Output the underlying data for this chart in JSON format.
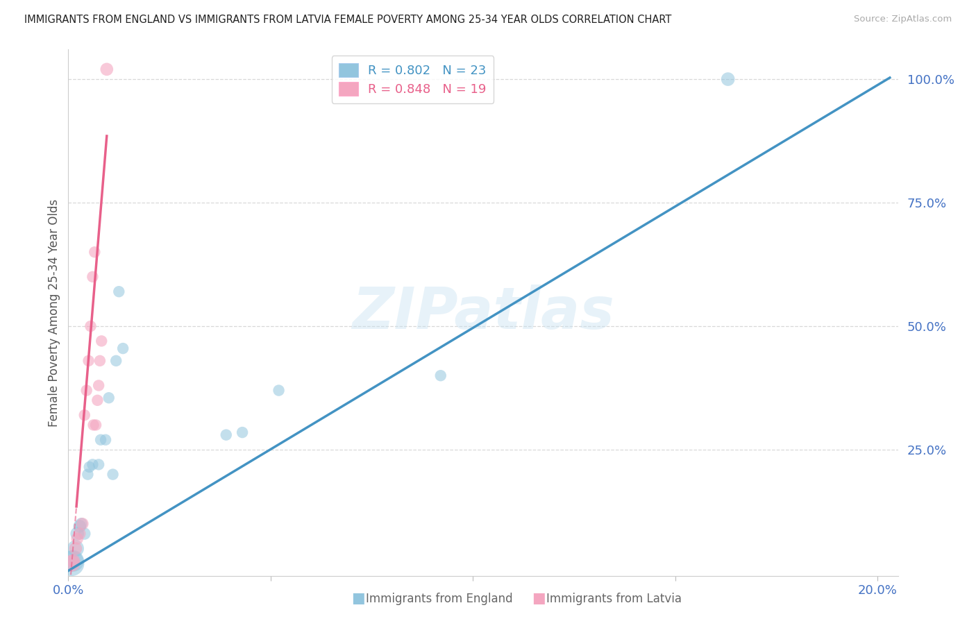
{
  "title": "IMMIGRANTS FROM ENGLAND VS IMMIGRANTS FROM LATVIA FEMALE POVERTY AMONG 25-34 YEAR OLDS CORRELATION CHART",
  "source": "Source: ZipAtlas.com",
  "ylabel": "Female Poverty Among 25-34 Year Olds",
  "watermark": "ZIPatlas",
  "legend_r_england": "R = 0.802",
  "legend_n_england": "N = 23",
  "legend_r_latvia": "R = 0.848",
  "legend_n_latvia": "N = 19",
  "blue_scatter_color": "#92c5de",
  "pink_scatter_color": "#f4a6c0",
  "blue_line_color": "#4393c3",
  "pink_line_color": "#e8608a",
  "axis_label_color": "#4472c4",
  "grid_color": "#d8d8d8",
  "xlim": [
    0.0,
    0.205
  ],
  "ylim": [
    -0.005,
    1.06
  ],
  "england_x": [
    0.0008,
    0.0012,
    0.0018,
    0.0022,
    0.0028,
    0.0032,
    0.004,
    0.0048,
    0.0052,
    0.006,
    0.0075,
    0.008,
    0.0092,
    0.01,
    0.011,
    0.0118,
    0.0125,
    0.0135,
    0.039,
    0.043,
    0.052,
    0.092,
    0.163
  ],
  "england_y": [
    0.02,
    0.025,
    0.05,
    0.08,
    0.095,
    0.1,
    0.08,
    0.2,
    0.215,
    0.22,
    0.22,
    0.27,
    0.27,
    0.355,
    0.2,
    0.43,
    0.57,
    0.455,
    0.28,
    0.285,
    0.37,
    0.4,
    1.0
  ],
  "england_sizes": [
    700,
    500,
    300,
    200,
    180,
    160,
    160,
    140,
    140,
    140,
    140,
    140,
    140,
    140,
    140,
    140,
    140,
    140,
    140,
    140,
    140,
    140,
    200
  ],
  "latvia_x": [
    0.0008,
    0.0012,
    0.0018,
    0.0022,
    0.0028,
    0.0035,
    0.004,
    0.0045,
    0.005,
    0.0055,
    0.006,
    0.0062,
    0.0065,
    0.0068,
    0.0072,
    0.0075,
    0.0078,
    0.0082,
    0.0095
  ],
  "latvia_y": [
    0.02,
    0.025,
    0.05,
    0.07,
    0.08,
    0.1,
    0.32,
    0.37,
    0.43,
    0.5,
    0.6,
    0.3,
    0.65,
    0.3,
    0.35,
    0.38,
    0.43,
    0.47,
    1.02
  ],
  "latvia_sizes": [
    300,
    200,
    180,
    160,
    160,
    160,
    140,
    140,
    140,
    140,
    140,
    140,
    140,
    140,
    140,
    140,
    140,
    140,
    180
  ],
  "eng_line_x0": 0.0,
  "eng_line_x1": 0.203,
  "eng_line_y0": 0.005,
  "eng_line_y1": 1.003,
  "lat_line_solid_x0": 0.002,
  "lat_line_solid_x1": 0.0095,
  "lat_line_dashed_x0": 0.0,
  "lat_line_dashed_x1": 0.002,
  "lat_line_slope": 100.0,
  "lat_line_intercept": -0.065
}
